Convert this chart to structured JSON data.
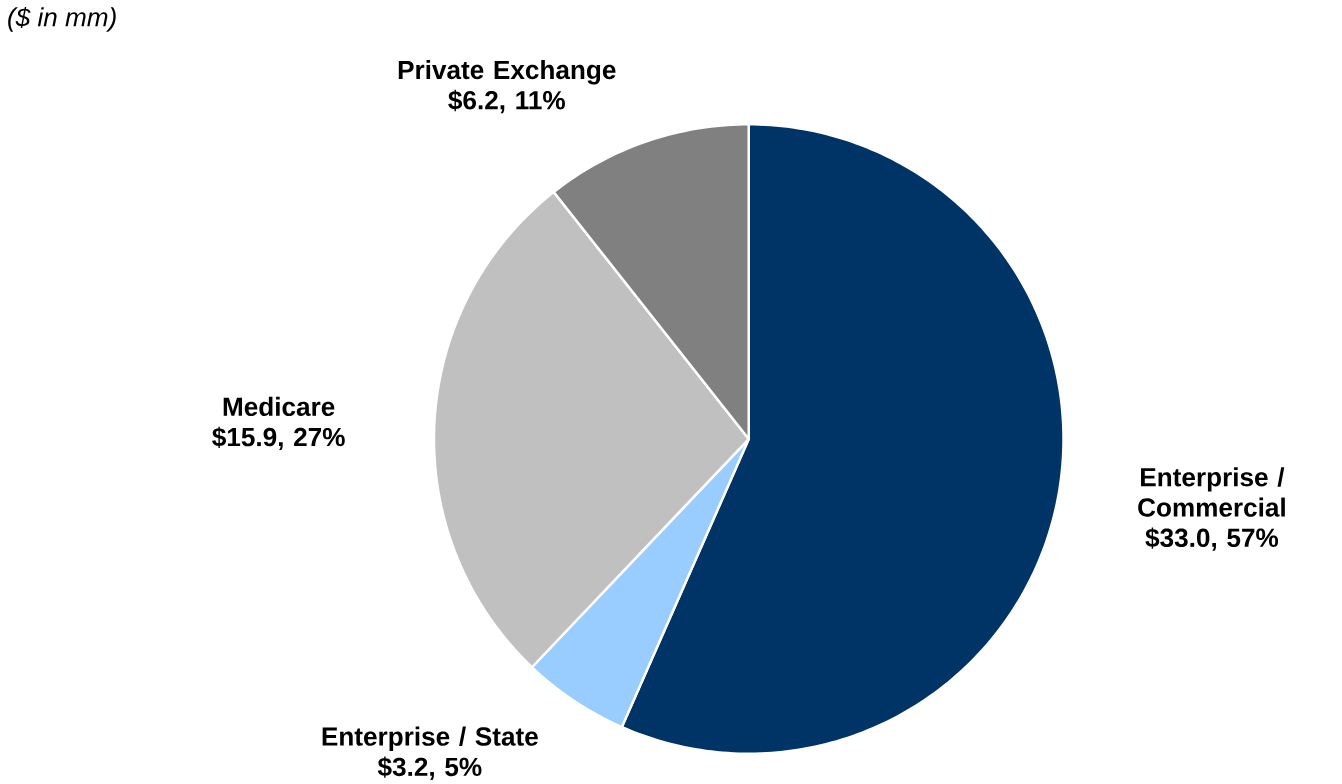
{
  "chart_data": {
    "type": "pie",
    "subtitle": "($ in mm)",
    "categories": [
      "Enterprise / Commercial",
      "Enterprise / State",
      "Medicare",
      "Private Exchange"
    ],
    "values": [
      33.0,
      3.2,
      15.9,
      6.2
    ],
    "value_labels": [
      "$33.0, 57%",
      "$3.2, 5%",
      "$15.9, 27%",
      "$6.2, 11%"
    ],
    "colors": [
      "#003366",
      "#99ccff",
      "#c0c0c0",
      "#808080"
    ]
  }
}
